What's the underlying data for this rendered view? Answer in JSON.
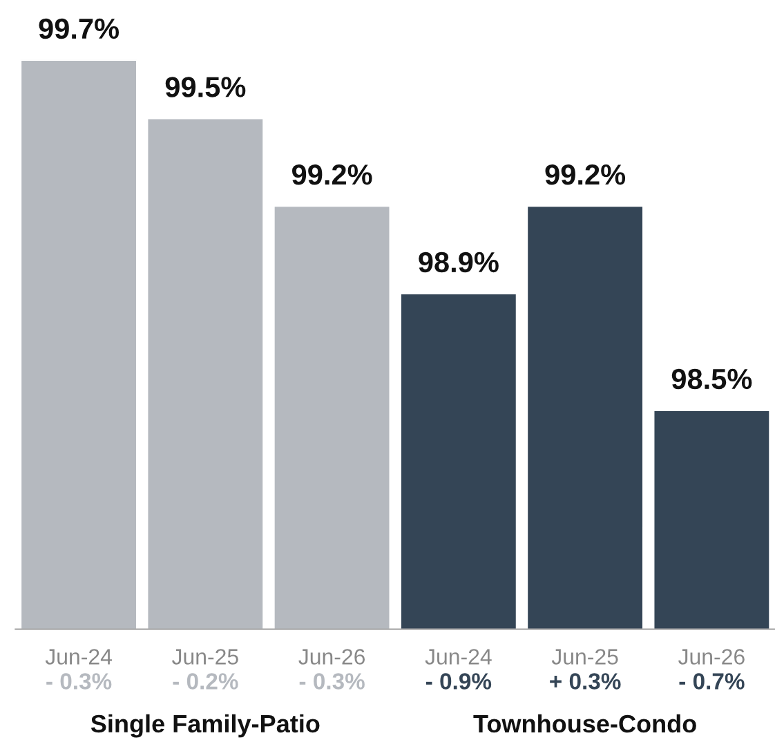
{
  "chart_data": {
    "type": "bar",
    "categories": [
      "Jun-24",
      "Jun-25",
      "Jun-26",
      "Jun-24",
      "Jun-25",
      "Jun-26"
    ],
    "series": [
      {
        "name": "Single Family-Patio",
        "color": "#b5b9bf",
        "values": [
          99.7,
          99.5,
          99.2,
          null,
          null,
          null
        ],
        "value_labels": [
          "99.7%",
          "99.5%",
          "99.2%",
          null,
          null,
          null
        ]
      },
      {
        "name": "Townhouse-Condo",
        "color": "#344556",
        "values": [
          null,
          null,
          null,
          98.9,
          99.2,
          98.5
        ],
        "value_labels": [
          null,
          null,
          null,
          "98.9%",
          "99.2%",
          "98.5%"
        ]
      }
    ],
    "annotations": [
      "- 0.3%",
      "- 0.2%",
      "- 0.3%",
      "- 0.9%",
      "+ 0.3%",
      "- 0.7%"
    ],
    "tick_labels": "x",
    "grid": false,
    "legend": false
  }
}
